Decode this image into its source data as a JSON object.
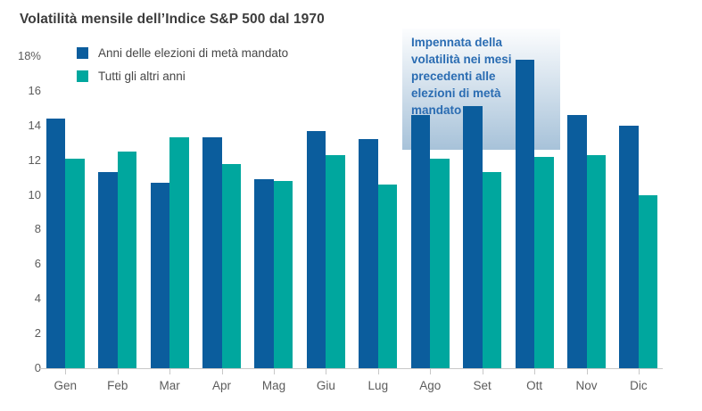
{
  "title": "Volatilità mensile dell’Indice S&P 500 dal 1970",
  "colors": {
    "midterm_bar": "#0b5d9d",
    "other_bar": "#00a79e",
    "title_text": "#3c3c3c",
    "axis_text": "#5c5c5c",
    "legend_text": "#464646",
    "axis_line": "#c8c8c8",
    "annotation_text": "#2a6cb2",
    "annotation_bg_top": "#fcfdfe",
    "annotation_bg_bottom": "#a7c2d9"
  },
  "legend": {
    "items": [
      {
        "label": "Anni delle elezioni di metà mandato",
        "series_key": "midterm"
      },
      {
        "label": "Tutti gli altri anni",
        "series_key": "other"
      }
    ]
  },
  "annotation": {
    "text": "Impennata della\nvolatilità nei mesi\nprecedenti alle\nelezioni di metà\nmandato"
  },
  "y_axis": {
    "tick_labels": [
      "18%",
      "16",
      "14",
      "12",
      "10",
      "8",
      "6",
      "4",
      "2",
      "0"
    ],
    "tick_values": [
      18,
      16,
      14,
      12,
      10,
      8,
      6,
      4,
      2,
      0
    ]
  },
  "chart_data": {
    "type": "bar",
    "title": "Volatilità mensile dell’Indice S&P 500 dal 1970",
    "categories": [
      "Gen",
      "Feb",
      "Mar",
      "Apr",
      "Mag",
      "Giu",
      "Lug",
      "Ago",
      "Set",
      "Ott",
      "Nov",
      "Dic"
    ],
    "series": [
      {
        "name": "Anni delle elezioni di metà mandato",
        "color": "#0b5d9d",
        "values": [
          14.4,
          11.3,
          10.7,
          13.3,
          10.9,
          13.7,
          13.2,
          14.6,
          15.1,
          17.8,
          14.6,
          14.0
        ]
      },
      {
        "name": "Tutti gli altri anni",
        "color": "#00a79e",
        "values": [
          12.1,
          12.5,
          13.3,
          11.8,
          10.8,
          12.3,
          10.6,
          12.1,
          11.3,
          12.2,
          12.3,
          10.0
        ]
      }
    ],
    "xlabel": "",
    "ylabel": "",
    "ylim": [
      0,
      18
    ],
    "grid": false,
    "legend_position": "top-left",
    "annotation": "Impennata della volatilità nei mesi precedenti alle elezioni di metà mandato"
  }
}
